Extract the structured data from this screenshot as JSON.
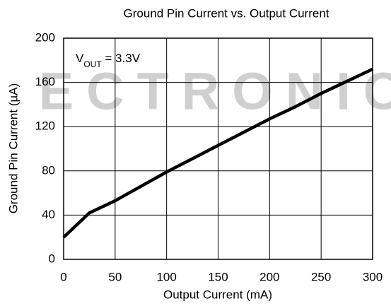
{
  "chart_data": {
    "type": "line",
    "title": "Ground Pin Current vs. Output Current",
    "xlabel": "Output Current (mA)",
    "ylabel": "Ground Pin Current (µA)",
    "annotation": [
      "V",
      "OUT",
      " = 3.3V"
    ],
    "watermark": "ECTRONIC",
    "x": [
      0,
      25,
      50,
      75,
      100,
      125,
      150,
      175,
      200,
      225,
      250,
      275,
      300
    ],
    "series": [
      {
        "name": "VOUT = 3.3V",
        "color": "#000000",
        "values": [
          20,
          42,
          53,
          66,
          79,
          91,
          103,
          115,
          127,
          138,
          150,
          161,
          172
        ]
      }
    ],
    "xlim": [
      0,
      300
    ],
    "xticks": [
      0,
      50,
      100,
      150,
      200,
      250,
      300
    ],
    "ylim": [
      0,
      200
    ],
    "yticks": [
      0,
      40,
      80,
      120,
      160,
      200
    ],
    "grid": true
  }
}
